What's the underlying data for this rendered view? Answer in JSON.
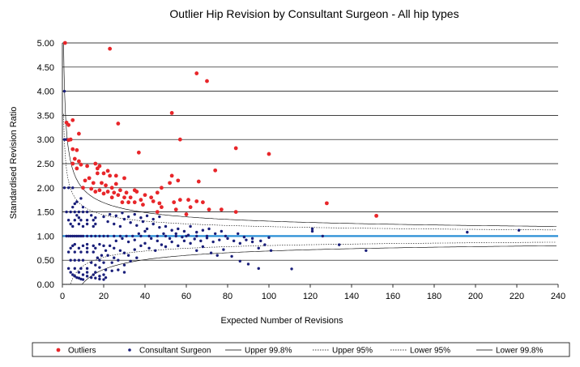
{
  "chart_data": {
    "type": "scatter",
    "title": "Outlier Hip Revision by Consultant Surgeon - All hip types",
    "xlabel": "Expected Number of Revisions",
    "ylabel": "Standardised Revision  Ratio",
    "xlim": [
      0,
      240
    ],
    "ylim": [
      0,
      5
    ],
    "x_ticks": [
      "0",
      "20",
      "40",
      "60",
      "80",
      "100",
      "120",
      "140",
      "160",
      "180",
      "200",
      "220",
      "240"
    ],
    "y_ticks": [
      "0.00",
      "0.50",
      "1.00",
      "1.50",
      "2.00",
      "2.50",
      "3.00",
      "3.50",
      "4.00",
      "4.50",
      "5.00"
    ],
    "grid": "horizontal",
    "reference_line": 1.0,
    "legend_position": "bottom",
    "legend": [
      "Outliers",
      "Consultant Surgeon",
      "Upper 99.8%",
      "Upper 95%",
      "Lower 95%",
      "Lower 99.8%"
    ],
    "colors": {
      "outliers": "#e8262a",
      "surgeon": "#1a1f7a",
      "reference": "#2a8fd6",
      "limit": "#000000"
    },
    "series": [
      {
        "name": "Outliers",
        "points": [
          [
            1.3,
            5.0
          ],
          [
            23,
            4.88
          ],
          [
            65,
            4.37
          ],
          [
            70,
            4.21
          ],
          [
            53,
            3.55
          ],
          [
            2,
            3.35
          ],
          [
            3,
            3.3
          ],
          [
            5,
            3.4
          ],
          [
            27,
            3.33
          ],
          [
            8,
            3.12
          ],
          [
            57,
            3.0
          ],
          [
            4,
            3.0
          ],
          [
            3,
            2.99
          ],
          [
            5,
            2.8
          ],
          [
            7,
            2.78
          ],
          [
            84,
            2.82
          ],
          [
            100,
            2.7
          ],
          [
            37,
            2.73
          ],
          [
            6,
            2.6
          ],
          [
            8,
            2.55
          ],
          [
            5,
            2.5
          ],
          [
            9,
            2.48
          ],
          [
            7,
            2.4
          ],
          [
            12,
            2.45
          ],
          [
            16,
            2.5
          ],
          [
            18,
            2.45
          ],
          [
            17,
            2.4
          ],
          [
            17,
            2.3
          ],
          [
            20,
            2.3
          ],
          [
            22,
            2.35
          ],
          [
            23,
            2.25
          ],
          [
            26,
            2.25
          ],
          [
            30,
            2.2
          ],
          [
            13,
            2.2
          ],
          [
            11,
            2.15
          ],
          [
            15,
            2.1
          ],
          [
            19,
            2.1
          ],
          [
            21,
            2.05
          ],
          [
            24,
            2.0
          ],
          [
            10,
            2.0
          ],
          [
            14,
            1.98
          ],
          [
            18,
            1.95
          ],
          [
            22,
            1.92
          ],
          [
            25,
            1.9
          ],
          [
            28,
            1.95
          ],
          [
            31,
            1.9
          ],
          [
            36,
            1.92
          ],
          [
            27,
            1.85
          ],
          [
            30,
            1.8
          ],
          [
            33,
            1.8
          ],
          [
            38,
            1.75
          ],
          [
            43,
            1.8
          ],
          [
            46,
            1.9
          ],
          [
            48,
            2.0
          ],
          [
            52,
            2.1
          ],
          [
            53,
            2.25
          ],
          [
            56,
            2.15
          ],
          [
            66,
            2.13
          ],
          [
            74,
            2.36
          ],
          [
            35,
            1.7
          ],
          [
            39,
            1.65
          ],
          [
            44,
            1.72
          ],
          [
            48,
            1.6
          ],
          [
            54,
            1.7
          ],
          [
            57,
            1.75
          ],
          [
            61,
            1.75
          ],
          [
            65,
            1.72
          ],
          [
            68,
            1.7
          ],
          [
            62,
            1.6
          ],
          [
            55,
            1.55
          ],
          [
            60,
            1.45
          ],
          [
            71,
            1.55
          ],
          [
            77,
            1.55
          ],
          [
            84,
            1.5
          ],
          [
            128,
            1.68
          ],
          [
            152,
            1.42
          ],
          [
            35,
            1.95
          ],
          [
            40,
            1.85
          ],
          [
            47,
            1.68
          ],
          [
            26,
            2.08
          ],
          [
            20,
            1.88
          ],
          [
            24,
            1.8
          ],
          [
            29,
            1.7
          ],
          [
            32,
            1.7
          ],
          [
            16,
            1.92
          ],
          [
            46,
            1.5
          ]
        ]
      },
      {
        "name": "Consultant Surgeon",
        "description_free": true,
        "curves_note": "",
        "bands": [
          [
            0,
            1.0
          ],
          [
            0,
            0.67
          ],
          [
            0,
            0.5
          ],
          [
            0,
            0.33
          ],
          [
            0,
            0.25
          ],
          [
            0,
            1.5
          ],
          [
            0,
            2.0
          ],
          [
            0,
            3.0
          ]
        ],
        "points": [
          [
            1,
            4.0
          ],
          [
            2,
            3.0
          ],
          [
            1,
            3.0
          ],
          [
            3,
            2.0
          ],
          [
            1,
            2.0
          ],
          [
            5,
            2.0
          ],
          [
            2,
            1.5
          ],
          [
            4,
            1.5
          ],
          [
            6,
            1.67
          ],
          [
            2,
            1.0
          ],
          [
            3,
            1.0
          ],
          [
            4,
            1.0
          ],
          [
            5,
            1.0
          ],
          [
            6,
            1.0
          ],
          [
            7,
            1.0
          ],
          [
            8,
            1.0
          ],
          [
            9,
            1.0
          ],
          [
            10,
            1.0
          ],
          [
            12,
            1.0
          ],
          [
            14,
            1.0
          ],
          [
            16,
            1.0
          ],
          [
            18,
            1.0
          ],
          [
            20,
            1.0
          ],
          [
            22,
            1.0
          ],
          [
            25,
            1.0
          ],
          [
            28,
            1.0
          ],
          [
            31,
            1.0
          ],
          [
            34,
            1.0
          ],
          [
            38,
            1.0
          ],
          [
            42,
            1.0
          ],
          [
            46,
            1.0
          ],
          [
            50,
            1.0
          ],
          [
            55,
            1.0
          ],
          [
            60,
            1.0
          ],
          [
            65,
            1.0
          ],
          [
            70,
            1.0
          ],
          [
            4,
            0.5
          ],
          [
            6,
            0.5
          ],
          [
            8,
            0.5
          ],
          [
            10,
            0.5
          ],
          [
            3,
            0.33
          ],
          [
            6,
            0.33
          ],
          [
            9,
            0.33
          ],
          [
            12,
            0.33
          ],
          [
            4,
            0.25
          ],
          [
            8,
            0.25
          ],
          [
            12,
            0.25
          ],
          [
            16,
            0.25
          ],
          [
            5,
            0.2
          ],
          [
            10,
            0.2
          ],
          [
            15,
            0.2
          ],
          [
            20,
            0.2
          ],
          [
            6,
            0.17
          ],
          [
            12,
            0.17
          ],
          [
            18,
            0.17
          ],
          [
            7,
            0.14
          ],
          [
            14,
            0.14
          ],
          [
            21,
            0.14
          ],
          [
            8,
            0.13
          ],
          [
            16,
            0.13
          ],
          [
            9,
            0.11
          ],
          [
            18,
            0.11
          ],
          [
            10,
            0.1
          ],
          [
            20,
            0.1
          ],
          [
            3,
            0.67
          ],
          [
            6,
            0.67
          ],
          [
            9,
            0.67
          ],
          [
            12,
            0.67
          ],
          [
            15,
            0.67
          ],
          [
            4,
            0.75
          ],
          [
            8,
            0.75
          ],
          [
            12,
            0.75
          ],
          [
            16,
            0.75
          ],
          [
            5,
            0.8
          ],
          [
            10,
            0.8
          ],
          [
            15,
            0.8
          ],
          [
            20,
            0.8
          ],
          [
            6,
            0.83
          ],
          [
            12,
            0.83
          ],
          [
            18,
            0.83
          ],
          [
            5,
            1.2
          ],
          [
            10,
            1.2
          ],
          [
            15,
            1.2
          ],
          [
            4,
            1.25
          ],
          [
            8,
            1.25
          ],
          [
            12,
            1.25
          ],
          [
            16,
            1.25
          ],
          [
            3,
            1.33
          ],
          [
            6,
            1.33
          ],
          [
            9,
            1.33
          ],
          [
            12,
            1.33
          ],
          [
            15,
            1.33
          ],
          [
            7,
            1.43
          ],
          [
            14,
            1.43
          ],
          [
            8,
            1.38
          ],
          [
            16,
            1.38
          ],
          [
            5,
            1.6
          ],
          [
            10,
            1.6
          ],
          [
            6,
            1.5
          ],
          [
            8,
            1.5
          ],
          [
            10,
            1.5
          ],
          [
            12,
            1.5
          ],
          [
            7,
            1.71
          ],
          [
            9,
            1.78
          ],
          [
            22,
            0.6
          ],
          [
            25,
            0.55
          ],
          [
            28,
            0.7
          ],
          [
            30,
            0.65
          ],
          [
            32,
            0.6
          ],
          [
            35,
            0.72
          ],
          [
            38,
            0.8
          ],
          [
            40,
            0.85
          ],
          [
            42,
            0.75
          ],
          [
            45,
            0.7
          ],
          [
            48,
            0.82
          ],
          [
            50,
            0.78
          ],
          [
            53,
            0.88
          ],
          [
            56,
            0.8
          ],
          [
            59,
            0.9
          ],
          [
            62,
            0.85
          ],
          [
            22,
            1.3
          ],
          [
            25,
            1.25
          ],
          [
            28,
            1.2
          ],
          [
            30,
            1.35
          ],
          [
            33,
            1.28
          ],
          [
            36,
            1.22
          ],
          [
            39,
            1.3
          ],
          [
            41,
            1.15
          ],
          [
            44,
            1.25
          ],
          [
            47,
            1.18
          ],
          [
            50,
            1.2
          ],
          [
            53,
            1.12
          ],
          [
            56,
            1.15
          ],
          [
            59,
            1.1
          ],
          [
            62,
            1.2
          ],
          [
            65,
            1.08
          ],
          [
            68,
            1.12
          ],
          [
            71,
            1.15
          ],
          [
            74,
            1.05
          ],
          [
            77,
            1.1
          ],
          [
            80,
            0.95
          ],
          [
            83,
            0.9
          ],
          [
            86,
            0.85
          ],
          [
            89,
            0.92
          ],
          [
            92,
            0.88
          ],
          [
            95,
            0.75
          ],
          [
            98,
            0.82
          ],
          [
            101,
            0.7
          ],
          [
            65,
            0.7
          ],
          [
            68,
            0.78
          ],
          [
            72,
            0.65
          ],
          [
            75,
            0.6
          ],
          [
            78,
            0.72
          ],
          [
            82,
            0.58
          ],
          [
            86,
            0.48
          ],
          [
            90,
            0.42
          ],
          [
            95,
            0.33
          ],
          [
            111,
            0.32
          ],
          [
            85,
            1.05
          ],
          [
            88,
            0.98
          ],
          [
            92,
            0.95
          ],
          [
            96,
            0.9
          ],
          [
            100,
            0.97
          ],
          [
            121,
            1.1
          ],
          [
            121,
            1.15
          ],
          [
            126,
            1.0
          ],
          [
            134,
            0.82
          ],
          [
            147,
            0.7
          ],
          [
            196,
            1.08
          ],
          [
            221,
            1.12
          ],
          [
            24,
            0.45
          ],
          [
            27,
            0.5
          ],
          [
            30,
            0.4
          ],
          [
            33,
            0.48
          ],
          [
            36,
            0.55
          ],
          [
            26,
            0.9
          ],
          [
            29,
            0.95
          ],
          [
            32,
            0.88
          ],
          [
            35,
            0.92
          ],
          [
            37,
            1.05
          ],
          [
            40,
            1.1
          ],
          [
            43,
            0.95
          ],
          [
            46,
            0.9
          ],
          [
            49,
            1.05
          ],
          [
            52,
            0.95
          ],
          [
            55,
            1.05
          ],
          [
            58,
            0.98
          ],
          [
            61,
            1.02
          ],
          [
            64,
            0.94
          ],
          [
            67,
            0.9
          ],
          [
            70,
            0.96
          ],
          [
            73,
            0.88
          ],
          [
            76,
            0.92
          ],
          [
            79,
            1.0
          ],
          [
            20,
            1.4
          ],
          [
            23,
            1.45
          ],
          [
            26,
            1.42
          ],
          [
            29,
            1.48
          ],
          [
            32,
            1.4
          ],
          [
            35,
            1.45
          ],
          [
            38,
            1.38
          ],
          [
            41,
            1.42
          ],
          [
            44,
            1.35
          ],
          [
            47,
            1.4
          ],
          [
            18,
            0.35
          ],
          [
            21,
            0.3
          ],
          [
            24,
            0.28
          ],
          [
            27,
            0.3
          ],
          [
            30,
            0.25
          ],
          [
            17,
            0.55
          ],
          [
            19,
            0.6
          ],
          [
            21,
            0.7
          ],
          [
            23,
            0.8
          ],
          [
            25,
            0.75
          ],
          [
            14,
            0.45
          ],
          [
            16,
            0.4
          ],
          [
            18,
            0.5
          ],
          [
            20,
            0.45
          ]
        ]
      }
    ]
  }
}
